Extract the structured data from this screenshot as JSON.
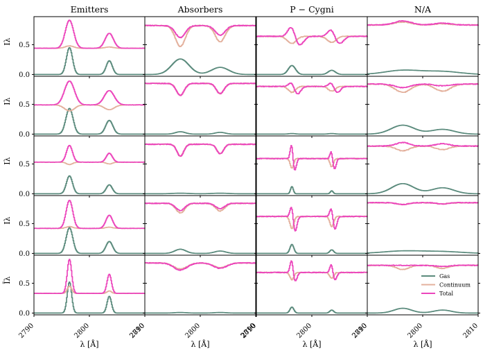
{
  "chart_data": {
    "type": "line",
    "rows": 5,
    "col_titles": [
      "Emitters",
      "Absorbers",
      "P − Cygni",
      "N/A"
    ],
    "x_range": [
      2790,
      2810
    ],
    "x_ticks": [
      "2790",
      "2800",
      "2810"
    ],
    "xlabel": "λ [Å]",
    "y_range": [
      -0.03,
      0.97
    ],
    "y_ticks": [
      "0.0",
      "0.5"
    ],
    "y_tick_values": [
      0.0,
      0.5
    ],
    "ylabels": [
      "Iλ",
      "Iλ",
      "Iλ",
      "Iλ",
      "Īλ"
    ],
    "lines": {
      "center1": 2796.35,
      "center2": 2803.53
    },
    "series_names": [
      "Gas",
      "Continuum",
      "Total"
    ],
    "colors": {
      "gas": "#5a8a7c",
      "continuum": "#e3b09c",
      "total": "#ec46bc"
    },
    "legend": {
      "location": "lower-right",
      "panel": "row5-col4",
      "entries": [
        {
          "label": "Gas",
          "color": "#5a8a7c"
        },
        {
          "label": "Continuum",
          "color": "#e3b09c"
        },
        {
          "label": "Total",
          "color": "#ec46bc"
        }
      ]
    },
    "panels": [
      [
        {
          "gas": {
            "a1": 0.45,
            "a2": 0.23,
            "w": 0.55
          },
          "base": 0.44,
          "ccomp": [
            0.04,
            0.02
          ],
          "tcomp": [
            0.47,
            0.25
          ],
          "tw": 0.75
        },
        {
          "gas": {
            "a1": 0.26,
            "a2": 0.12,
            "w": 1.55
          },
          "base": 0.82,
          "ccomp": [
            -0.35,
            -0.27
          ],
          "tcomp": [
            -0.2,
            -0.16
          ],
          "tw": 0.9
        },
        {
          "gas": {
            "a1": 0.15,
            "a2": 0.07,
            "w": 0.65
          },
          "base": 0.64,
          "ccomp": [
            -0.12,
            -0.1
          ],
          "tcomp": [
            0.18,
            0.13
          ],
          "tw": 0.8,
          "pcyg": true
        },
        {
          "gas": {
            "a1": 0.07,
            "a2": 0.05,
            "w": 3.2
          },
          "base": 0.83,
          "ccomp": [
            0.05,
            0.02
          ],
          "tcomp": [
            0.07,
            0.03
          ],
          "tw": 1.5
        }
      ],
      [
        {
          "gas": {
            "a1": 0.43,
            "a2": 0.23,
            "w": 0.65
          },
          "base": 0.49,
          "ccomp": [
            -0.1,
            -0.08
          ],
          "tcomp": [
            0.4,
            0.24
          ],
          "tw": 0.9
        },
        {
          "gas": {
            "a1": 0.04,
            "a2": 0.03,
            "w": 0.9
          },
          "base": 0.85,
          "ccomp": [
            -0.2,
            -0.17
          ],
          "tcomp": [
            -0.2,
            -0.17
          ],
          "tw": 0.7
        },
        {
          "gas": {
            "a1": 0.01,
            "a2": 0.01,
            "w": 0.6
          },
          "base": 0.8,
          "ccomp": [
            -0.1,
            -0.08
          ],
          "tcomp": [
            0.08,
            0.07
          ],
          "tw": 0.6,
          "pcyg": true
        },
        {
          "gas": {
            "a1": 0.15,
            "a2": 0.08,
            "w": 2.1
          },
          "base": 0.84,
          "ccomp": [
            -0.14,
            -0.12
          ],
          "tcomp": [
            -0.06,
            -0.03
          ],
          "tw": 1.4
        }
      ],
      [
        {
          "gas": {
            "a1": 0.3,
            "a2": 0.15,
            "w": 0.55
          },
          "base": 0.53,
          "ccomp": [
            -0.04,
            -0.03
          ],
          "tcomp": [
            0.28,
            0.15
          ],
          "tw": 0.55
        },
        {
          "gas": {
            "a1": 0.01,
            "a2": 0.01,
            "w": 1.4
          },
          "base": 0.83,
          "ccomp": [
            -0.2,
            -0.16
          ],
          "tcomp": [
            -0.2,
            -0.16
          ],
          "tw": 0.6
        },
        {
          "gas": {
            "a1": 0.12,
            "a2": 0.05,
            "w": 0.25
          },
          "base": 0.59,
          "ccomp": [
            -0.16,
            -0.14
          ],
          "tcomp": [
            0.26,
            0.14
          ],
          "tw": 0.3,
          "pcyg": true
        },
        {
          "gas": {
            "a1": 0.17,
            "a2": 0.1,
            "w": 2.0
          },
          "base": 0.8,
          "ccomp": [
            -0.08,
            -0.06
          ],
          "tcomp": [
            0.06,
            0.04
          ],
          "tw": 1.2
        }
      ],
      [
        {
          "gas": {
            "a1": 0.43,
            "a2": 0.2,
            "w": 0.6
          },
          "base": 0.42,
          "ccomp": [
            0.03,
            0.02
          ],
          "tcomp": [
            0.47,
            0.22
          ],
          "tw": 0.6
        },
        {
          "gas": {
            "a1": 0.07,
            "a2": 0.04,
            "w": 1.0
          },
          "base": 0.84,
          "ccomp": [
            -0.16,
            -0.13
          ],
          "tcomp": [
            -0.12,
            -0.09
          ],
          "tw": 0.8
        },
        {
          "gas": {
            "a1": 0.15,
            "a2": 0.06,
            "w": 0.35
          },
          "base": 0.62,
          "ccomp": [
            -0.2,
            -0.17
          ],
          "tcomp": [
            0.2,
            0.16
          ],
          "tw": 0.35,
          "pcyg": true
        },
        {
          "gas": {
            "a1": 0.04,
            "a2": 0.03,
            "w": 3.5
          },
          "base": 0.85,
          "ccomp": [
            -0.03,
            -0.02
          ],
          "tcomp": [
            -0.03,
            -0.02
          ],
          "tw": 1.0
        }
      ],
      [
        {
          "gas": {
            "a1": 0.52,
            "a2": 0.28,
            "w": 0.4
          },
          "base": 0.33,
          "ccomp": [
            0.12,
            0.04
          ],
          "tcomp": [
            0.57,
            0.32
          ],
          "tw": 0.4
        },
        {
          "gas": {
            "a1": 0.01,
            "a2": 0.01,
            "w": 1.0
          },
          "base": 0.84,
          "ccomp": [
            -0.1,
            -0.08
          ],
          "tcomp": [
            -0.12,
            -0.09
          ],
          "tw": 1.2
        },
        {
          "gas": {
            "a1": 0.1,
            "a2": 0.05,
            "w": 0.35
          },
          "base": 0.68,
          "ccomp": [
            -0.12,
            -0.1
          ],
          "tcomp": [
            0.22,
            0.15
          ],
          "tw": 0.35,
          "pcyg": true
        },
        {
          "gas": {
            "a1": 0.08,
            "a2": 0.05,
            "w": 1.6
          },
          "base": 0.8,
          "ccomp": [
            -0.07,
            -0.05
          ],
          "tcomp": [
            0.0,
            -0.02
          ],
          "tw": 1.1
        }
      ]
    ]
  }
}
